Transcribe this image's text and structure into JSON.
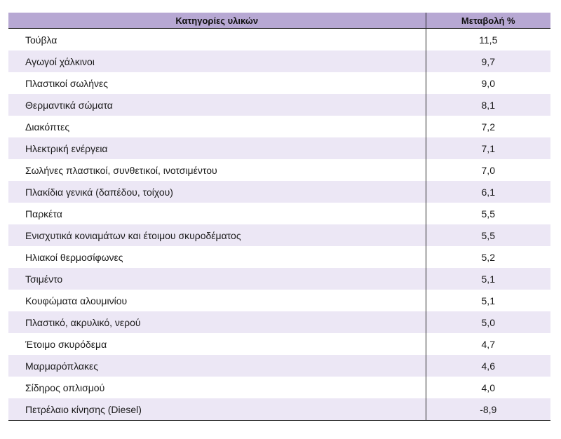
{
  "table": {
    "headers": {
      "category": "Κατηγορίες υλικών",
      "change": "Μεταβολή %"
    },
    "rows": [
      {
        "name": "Τούβλα",
        "value": "11,5"
      },
      {
        "name": "Αγωγοί χάλκινοι",
        "value": "9,7"
      },
      {
        "name": "Πλαστικοί σωλήνες",
        "value": "9,0"
      },
      {
        "name": "Θερμαντικά σώματα",
        "value": "8,1"
      },
      {
        "name": "Διακόπτες",
        "value": "7,2"
      },
      {
        "name": "Ηλεκτρική ενέργεια",
        "value": "7,1"
      },
      {
        "name": "Σωλήνες πλαστικοί, συνθετικοί, ινοτσιμέντου",
        "value": "7,0"
      },
      {
        "name": "Πλακίδια γενικά (δαπέδου, τοίχου)",
        "value": "6,1"
      },
      {
        "name": "Παρκέτα",
        "value": "5,5"
      },
      {
        "name": "Ενισχυτικά κονιαμάτων και έτοιμου σκυροδέματος",
        "value": "5,5"
      },
      {
        "name": "Ηλιακοί θερμοσίφωνες",
        "value": "5,2"
      },
      {
        "name": "Τσιμέντο",
        "value": "5,1"
      },
      {
        "name": "Κουφώματα αλουμινίου",
        "value": "5,1"
      },
      {
        "name": "Πλαστικό, ακρυλικό, νερού",
        "value": "5,0"
      },
      {
        "name": "Έτοιμο σκυρόδεμα",
        "value": "4,7"
      },
      {
        "name": "Μαρμαρόπλακες",
        "value": "4,6"
      },
      {
        "name": "Σίδηρος οπλισμού",
        "value": "4,0"
      },
      {
        "name": "Πετρέλαιο κίνησης (Diesel)",
        "value": "-8,9"
      }
    ]
  }
}
